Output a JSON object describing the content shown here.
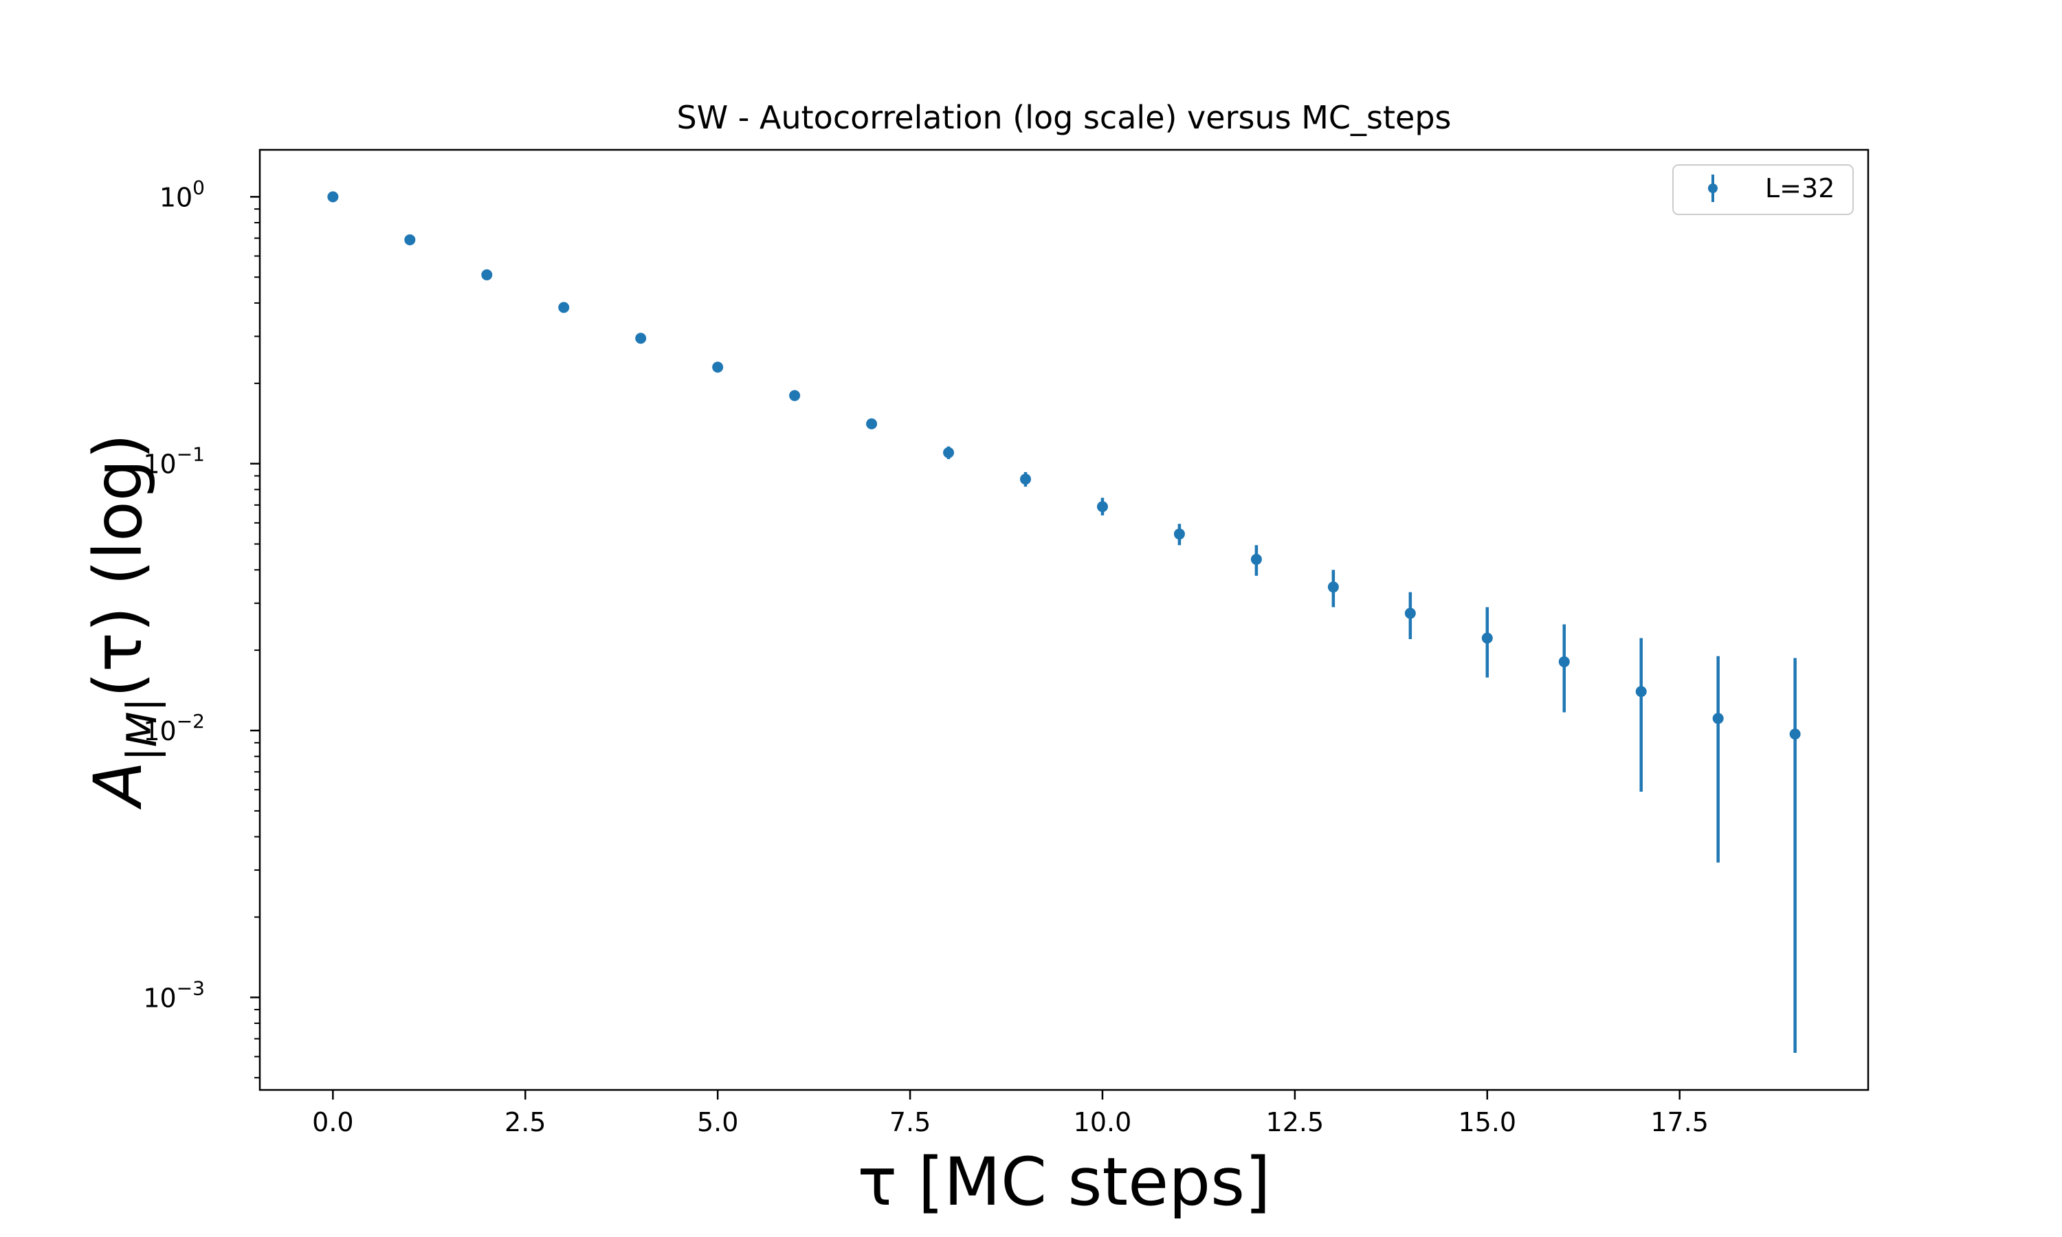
{
  "chart_data": {
    "type": "scatter",
    "title": "SW - Autocorrelation (log scale) versus MC_steps",
    "xlabel": "τ [MC steps]",
    "ylabel": {
      "base": "A",
      "subscript": "|M|",
      "rest": "(τ) (log)"
    },
    "xlim": [
      -0.95,
      19.95
    ],
    "ylim": [
      0.00045,
      1.5
    ],
    "yscale": "log",
    "grid": false,
    "legend_position": "top-right",
    "x_ticks": [
      {
        "value": 0,
        "label": "0.0"
      },
      {
        "value": 2.5,
        "label": "2.5"
      },
      {
        "value": 5,
        "label": "5.0"
      },
      {
        "value": 7.5,
        "label": "7.5"
      },
      {
        "value": 10,
        "label": "10.0"
      },
      {
        "value": 12.5,
        "label": "12.5"
      },
      {
        "value": 15,
        "label": "15.0"
      },
      {
        "value": 17.5,
        "label": "17.5"
      }
    ],
    "y_ticks": [
      {
        "value": 1,
        "base": "10",
        "exp": "0"
      },
      {
        "value": 0.1,
        "base": "10",
        "exp": "−1"
      },
      {
        "value": 0.01,
        "base": "10",
        "exp": "−2"
      },
      {
        "value": 0.001,
        "base": "10",
        "exp": "−3"
      }
    ],
    "series": [
      {
        "name": "L=32",
        "color": "#1f77b4",
        "x": [
          0,
          1,
          2,
          3,
          4,
          5,
          6,
          7,
          8,
          9,
          10,
          11,
          12,
          13,
          14,
          15,
          16,
          17,
          18,
          19
        ],
        "y": [
          1.0,
          0.69,
          0.51,
          0.385,
          0.295,
          0.23,
          0.18,
          0.141,
          0.11,
          0.0875,
          0.069,
          0.0545,
          0.0438,
          0.0345,
          0.0275,
          0.0222,
          0.0181,
          0.014,
          0.0111,
          0.0097
        ],
        "y_low": [
          0.999,
          0.687,
          0.506,
          0.38,
          0.29,
          0.225,
          0.175,
          0.136,
          0.104,
          0.082,
          0.064,
          0.0495,
          0.038,
          0.029,
          0.022,
          0.0158,
          0.0117,
          0.0059,
          0.0032,
          0.00062
        ],
        "y_high": [
          1.001,
          0.693,
          0.514,
          0.39,
          0.3,
          0.235,
          0.185,
          0.146,
          0.116,
          0.093,
          0.0745,
          0.0595,
          0.0495,
          0.04,
          0.033,
          0.029,
          0.025,
          0.0222,
          0.019,
          0.0187
        ]
      }
    ]
  }
}
